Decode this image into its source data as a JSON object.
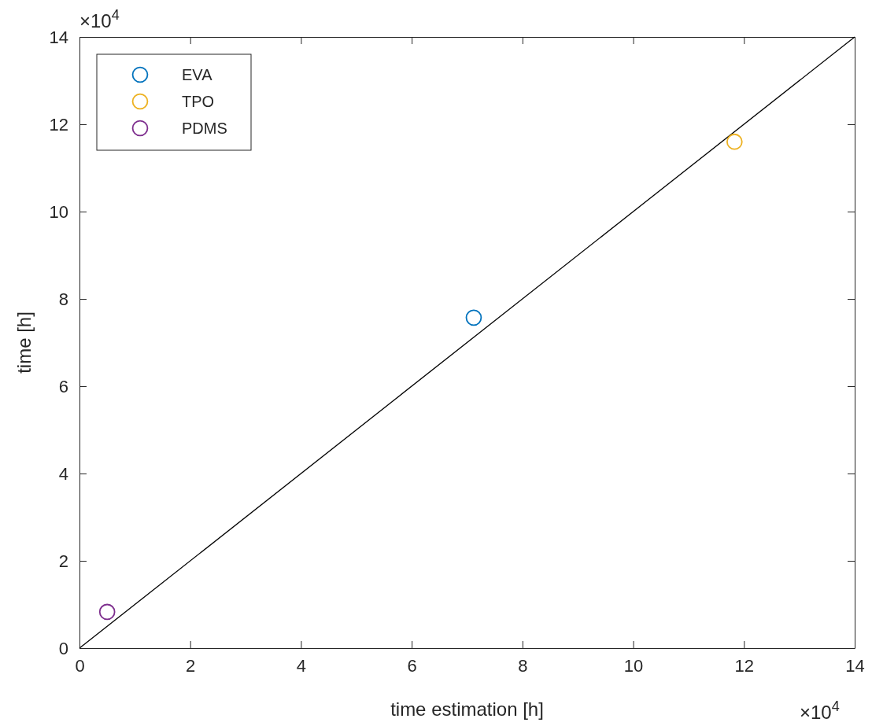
{
  "chart_data": {
    "type": "scatter",
    "xlabel": "time estimation [h]",
    "ylabel": "time [h]",
    "xlim": [
      0,
      14
    ],
    "ylim": [
      0,
      14
    ],
    "xticks": [
      0,
      2,
      4,
      6,
      8,
      10,
      12,
      14
    ],
    "yticks": [
      0,
      2,
      4,
      6,
      8,
      10,
      12,
      14
    ],
    "annotations": [
      "×10$^{4}$",
      "×10$^{4}$"
    ],
    "marker": "circle",
    "legend": "top left",
    "grid": false,
    "series": [
      {
        "type": "line",
        "color": "#000000",
        "x": [
          0,
          14
        ],
        "values": [
          0,
          14
        ],
        "marker": "none",
        "line_style": "solid"
      },
      {
        "name": "EVA",
        "color": "#0072bd",
        "x": [
          7.12
        ],
        "values": [
          7.57
        ]
      },
      {
        "name": "TPO",
        "color": "#edb120",
        "x": [
          11.83
        ],
        "values": [
          11.6
        ]
      },
      {
        "name": "PDMS",
        "color": "#7e2f8e",
        "x": [
          0.5
        ],
        "values": [
          0.83
        ]
      }
    ]
  }
}
